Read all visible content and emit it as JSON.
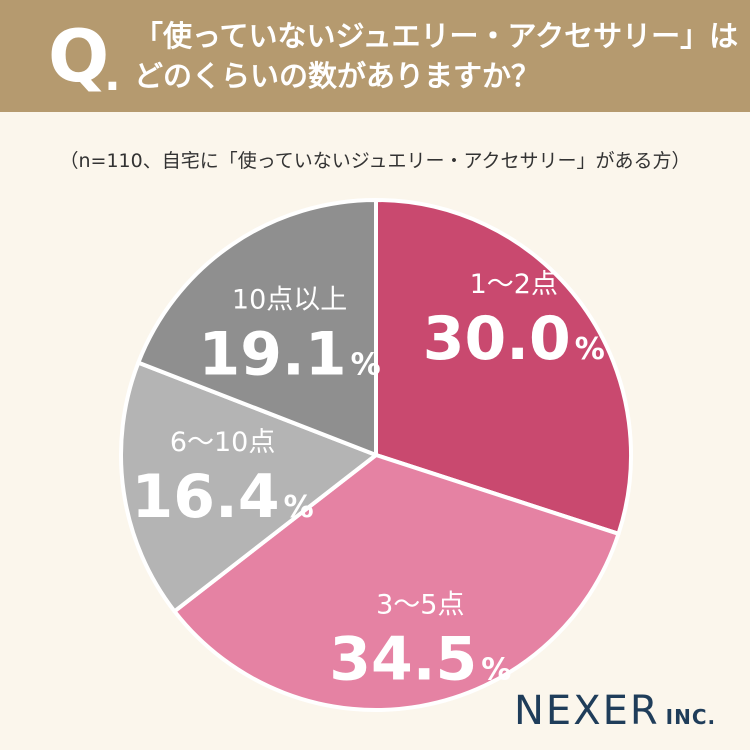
{
  "header": {
    "q_label": "Q",
    "q_dot": ".",
    "question_line1": "「使っていないジュエリー・アクセサリー」は",
    "question_line2": "どのくらいの数がありますか？"
  },
  "note": "（n=110、自宅に「使っていないジュエリー・アクセサリー」がある方）",
  "chart_data": {
    "type": "pie",
    "start_angle_deg": 0,
    "direction": "clockwise",
    "slices": [
      {
        "label": "1〜2点",
        "value": 30.0,
        "value_text": "30.0",
        "unit": "%",
        "color": "#c9496f",
        "text_color": "#ffffff"
      },
      {
        "label": "3〜5点",
        "value": 34.5,
        "value_text": "34.5",
        "unit": "%",
        "color": "#e582a3",
        "text_color": "#ffffff"
      },
      {
        "label": "6〜10点",
        "value": 16.4,
        "value_text": "16.4",
        "unit": "%",
        "color": "#b4b4b4",
        "text_color": "#ffffff"
      },
      {
        "label": "10点以上",
        "value": 19.1,
        "value_text": "19.1",
        "unit": "%",
        "color": "#8f8f8f",
        "text_color": "#ffffff"
      }
    ]
  },
  "logo": {
    "brand": "NEXER",
    "suffix": "INC."
  }
}
